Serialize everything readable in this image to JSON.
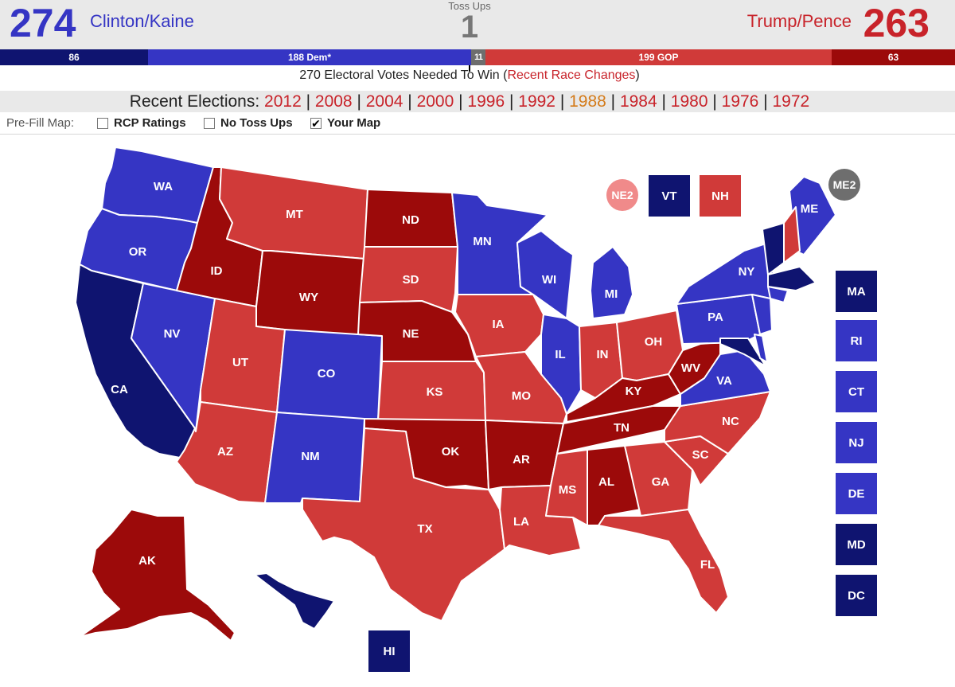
{
  "colors": {
    "safe_dem": "#0f1470",
    "lean_dem": "#3535c4",
    "toss": "#6e6e6e",
    "lean_gop": "#d03a39",
    "safe_gop": "#9c0a0a",
    "likely_gop_light": "#f08a8a"
  },
  "header": {
    "dem_total": "274",
    "dem_ticket": "Clinton/Kaine",
    "tossups_label": "Toss Ups",
    "tossups_count": "1",
    "gop_ticket": "Trump/Pence",
    "gop_total": "263"
  },
  "bar": {
    "safe_dem": "86",
    "lean_dem": "188 Dem*",
    "toss_a": "1",
    "toss_b": "1",
    "lean_gop": "199 GOP",
    "safe_gop": "63"
  },
  "needed": {
    "prefix": "270 Electoral Votes Needed To Win (",
    "link": "Recent Race Changes",
    "suffix": ")"
  },
  "recent": {
    "label": "Recent Elections: ",
    "years": [
      "2012",
      "2008",
      "2004",
      "2000",
      "1996",
      "1992",
      "1988",
      "1984",
      "1980",
      "1976",
      "1972"
    ],
    "selected": "1988"
  },
  "prefill": {
    "label": "Pre-Fill Map:",
    "options": [
      {
        "label": "RCP Ratings",
        "checked": false
      },
      {
        "label": "No Toss Ups",
        "checked": false
      },
      {
        "label": "Your Map",
        "checked": true
      }
    ]
  },
  "states": {
    "WA": "lean_dem",
    "OR": "lean_dem",
    "CA": "safe_dem",
    "NV": "lean_dem",
    "ID": "safe_gop",
    "MT": "lean_gop",
    "WY": "safe_gop",
    "UT": "lean_gop",
    "AZ": "lean_gop",
    "CO": "lean_dem",
    "NM": "lean_dem",
    "ND": "safe_gop",
    "SD": "lean_gop",
    "NE": "safe_gop",
    "KS": "lean_gop",
    "OK": "safe_gop",
    "TX": "lean_gop",
    "MN": "lean_dem",
    "IA": "lean_gop",
    "MO": "lean_gop",
    "AR": "safe_gop",
    "LA": "lean_gop",
    "WI": "lean_dem",
    "IL": "lean_dem",
    "MI": "lean_dem",
    "IN": "lean_gop",
    "OH": "lean_gop",
    "KY": "safe_gop",
    "TN": "safe_gop",
    "MS": "lean_gop",
    "AL": "safe_gop",
    "GA": "lean_gop",
    "FL": "lean_gop",
    "SC": "lean_gop",
    "NC": "lean_gop",
    "VA": "lean_dem",
    "WV": "safe_gop",
    "PA": "lean_dem",
    "NY": "lean_dem",
    "ME": "lean_dem",
    "AK": "safe_gop",
    "HI": "safe_dem"
  },
  "small_states": [
    {
      "code": "MA",
      "rating": "safe_dem"
    },
    {
      "code": "RI",
      "rating": "lean_dem"
    },
    {
      "code": "CT",
      "rating": "lean_dem"
    },
    {
      "code": "NJ",
      "rating": "lean_dem"
    },
    {
      "code": "DE",
      "rating": "lean_dem"
    },
    {
      "code": "MD",
      "rating": "safe_dem"
    },
    {
      "code": "DC",
      "rating": "safe_dem"
    }
  ],
  "top_boxes": [
    {
      "code": "NE2",
      "rating": "likely_gop_light",
      "shape": "circle"
    },
    {
      "code": "VT",
      "rating": "safe_dem",
      "shape": "square"
    },
    {
      "code": "NH",
      "rating": "lean_gop",
      "shape": "square"
    },
    {
      "code": "ME2",
      "rating": "toss",
      "shape": "circle"
    }
  ],
  "hi_box": {
    "code": "HI",
    "rating": "safe_dem"
  }
}
